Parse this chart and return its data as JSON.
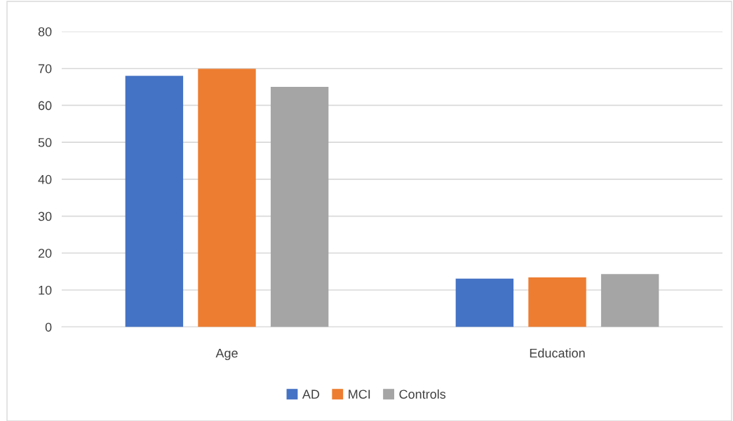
{
  "chart_data": {
    "type": "bar",
    "categories": [
      "Age",
      "Education"
    ],
    "series": [
      {
        "name": "AD",
        "color": "#4472c4",
        "values": [
          68.0,
          13.1
        ]
      },
      {
        "name": "MCI",
        "color": "#ed7d31",
        "values": [
          69.9,
          13.4
        ]
      },
      {
        "name": "Controls",
        "color": "#a5a5a5",
        "values": [
          65.0,
          14.3
        ]
      }
    ],
    "ylim": [
      0,
      80
    ],
    "yticks": [
      0,
      10,
      20,
      30,
      40,
      50,
      60,
      70,
      80
    ],
    "grid": "y",
    "legend": "bottom"
  }
}
